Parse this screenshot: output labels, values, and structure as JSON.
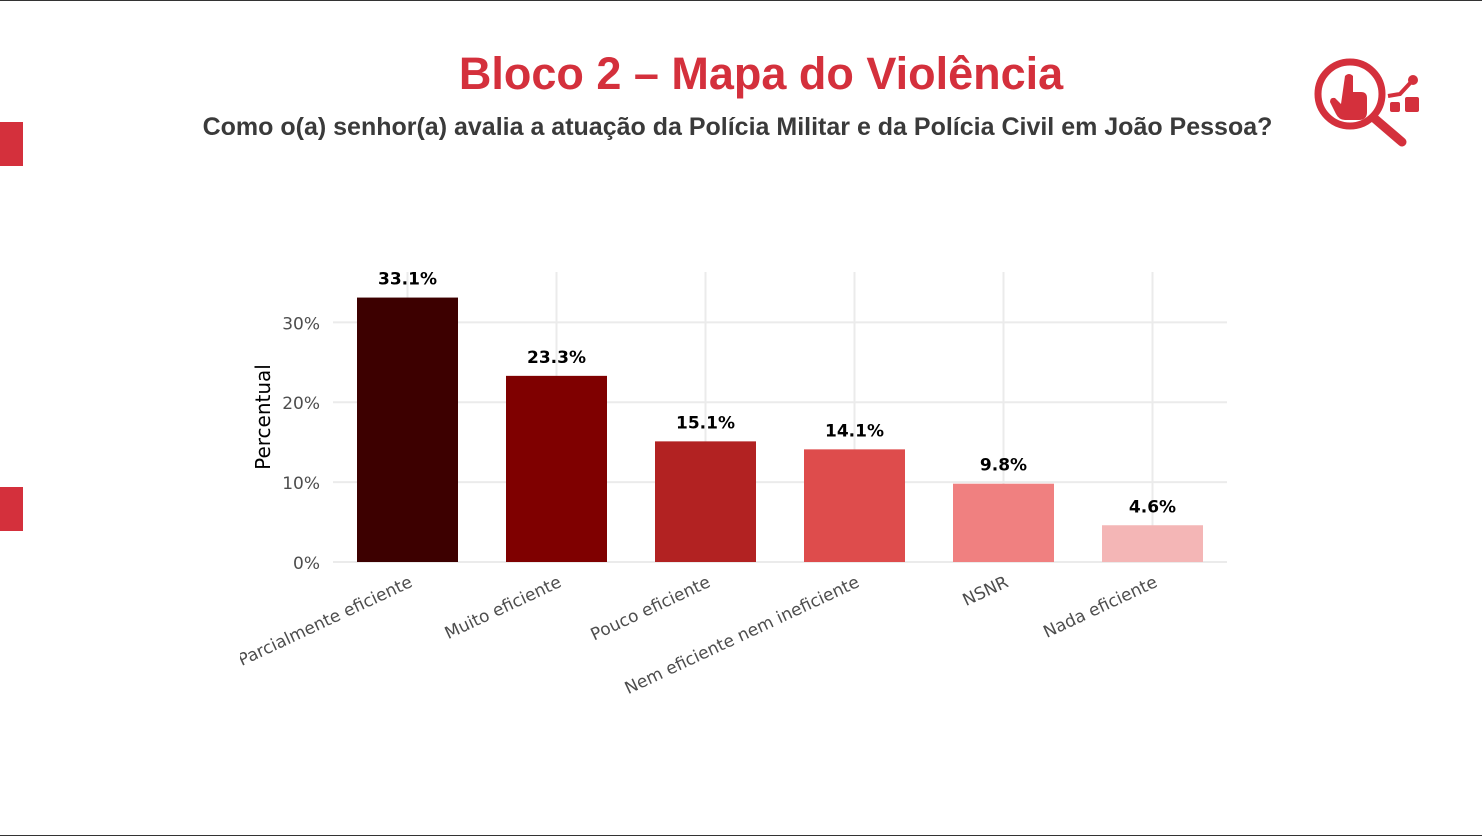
{
  "header": {
    "title": "Bloco 2 – Mapa do Violência",
    "subtitle": "Como o(a) senhor(a) avalia a atuação da Polícia Militar e da Polícia Civil em João Pessoa?",
    "logo_icon": "magnifier-hand-chart-icon",
    "accent_color": "#d4303c"
  },
  "chart_data": {
    "type": "bar",
    "title": "",
    "xlabel": "",
    "ylabel": "Percentual",
    "categories": [
      "Parcialmente eficiente",
      "Muito eficiente",
      "Pouco eficiente",
      "Nem eficiente nem ineficiente",
      "NSNR",
      "Nada eficiente"
    ],
    "values": [
      33.1,
      23.3,
      15.1,
      14.1,
      9.8,
      4.6
    ],
    "data_labels": [
      "33.1%",
      "23.3%",
      "15.1%",
      "14.1%",
      "9.8%",
      "4.6%"
    ],
    "colors": [
      "#3d0000",
      "#7f0000",
      "#b22222",
      "#de4c4c",
      "#f08080",
      "#f4b6b6"
    ],
    "yticks": [
      "0%",
      "10%",
      "20%",
      "30%"
    ],
    "ytick_values": [
      0,
      10,
      20,
      30
    ],
    "ylim": [
      0,
      36.3
    ],
    "grid": true,
    "legend": "none"
  }
}
